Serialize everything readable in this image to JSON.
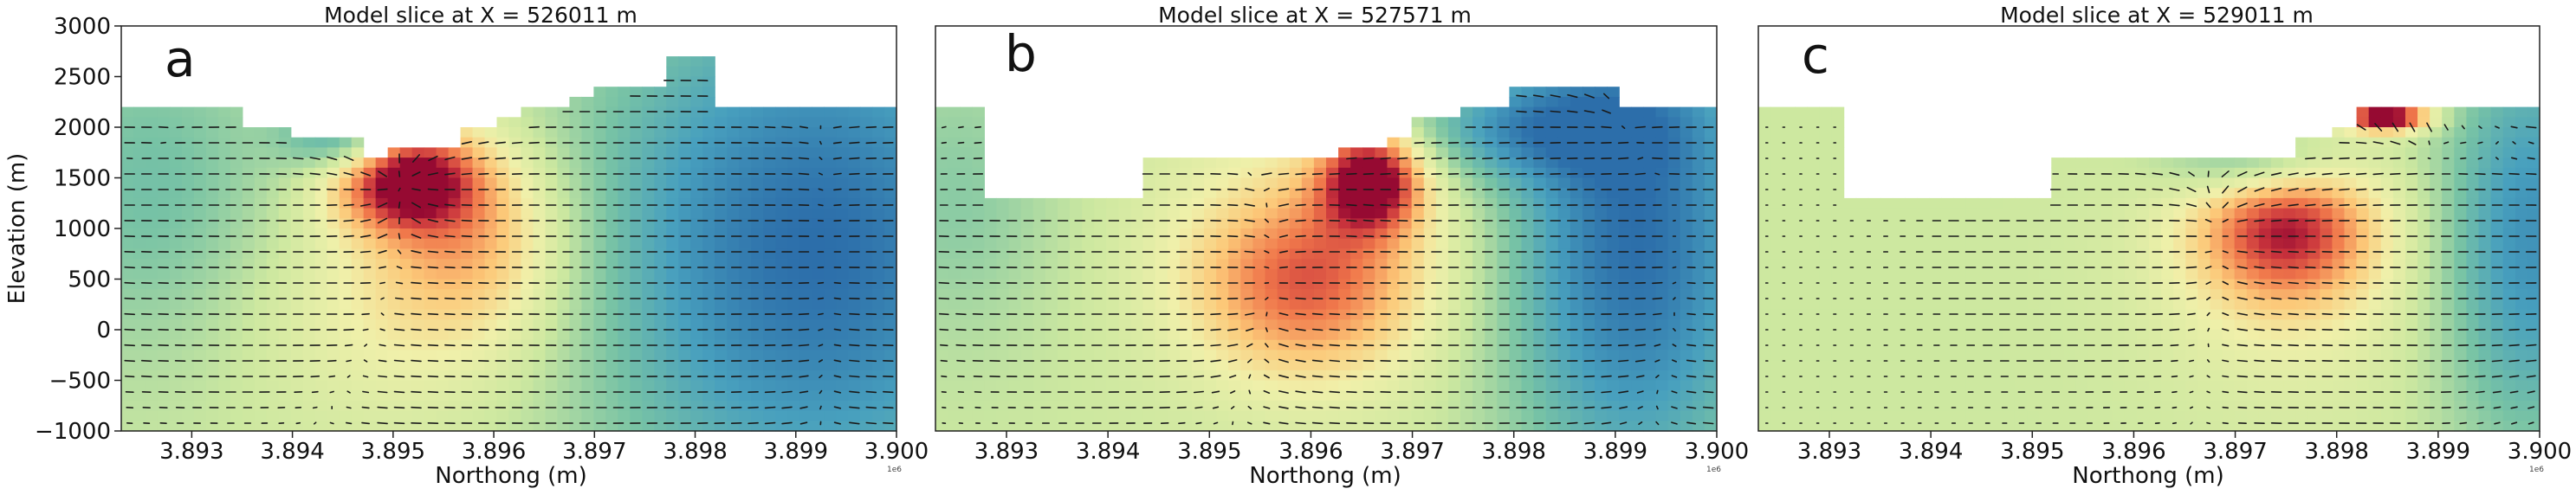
{
  "chart_data": [
    {
      "type": "heatmap",
      "panel_letter": "a",
      "title": "Model slice at X = 526011 m",
      "xlabel": "Northong (m)",
      "ylabel": "Elevation (m)",
      "x_offset_label": "1e6",
      "xlim": [
        3.8923,
        3.9
      ],
      "ylim": [
        -1000,
        3000
      ],
      "xticks": [
        "3.893",
        "3.894",
        "3.895",
        "3.896",
        "3.897",
        "3.898",
        "3.899",
        "3.900"
      ],
      "yticks": [
        "3000",
        "2500",
        "2000",
        "1500",
        "1000",
        "500",
        "0",
        "−500",
        "−1000"
      ],
      "topography": [
        [
          3.8923,
          2200
        ],
        [
          3.8935,
          2200
        ],
        [
          3.8935,
          1950
        ],
        [
          3.894,
          1950
        ],
        [
          3.894,
          1850
        ],
        [
          3.8947,
          1850
        ],
        [
          3.8947,
          1650
        ],
        [
          3.895,
          1650
        ],
        [
          3.895,
          1800
        ],
        [
          3.8957,
          1800
        ],
        [
          3.8957,
          1950
        ],
        [
          3.896,
          1950
        ],
        [
          3.896,
          2050
        ],
        [
          3.8963,
          2050
        ],
        [
          3.8963,
          2200
        ],
        [
          3.8967,
          2200
        ],
        [
          3.8967,
          2300
        ],
        [
          3.897,
          2300
        ],
        [
          3.897,
          2350
        ],
        [
          3.8973,
          2350
        ],
        [
          3.8973,
          2400
        ],
        [
          3.8977,
          2400
        ],
        [
          3.8977,
          2650
        ],
        [
          3.8982,
          2650
        ],
        [
          3.8982,
          2200
        ],
        [
          3.9,
          2200
        ]
      ],
      "anomalies": [
        {
          "x": 3.8951,
          "y": 1500,
          "amp": 1.0,
          "sx": 0.0005,
          "sy": 350
        },
        {
          "x": 3.8958,
          "y": 1000,
          "amp": 0.5,
          "sx": 0.0007,
          "sy": 700
        },
        {
          "x": 3.8952,
          "y": 200,
          "amp": 0.25,
          "sx": 0.0012,
          "sy": 800
        }
      ],
      "low_zones": [
        {
          "x": 3.8992,
          "y": 800,
          "amp": -1.0,
          "sx": 0.0016,
          "sy": 1800
        },
        {
          "x": 3.8945,
          "y": 1900,
          "amp": -0.6,
          "sx": 0.0004,
          "sy": 250
        },
        {
          "x": 3.8926,
          "y": 1400,
          "amp": -0.35,
          "sx": 0.0009,
          "sy": 1200
        }
      ]
    },
    {
      "type": "heatmap",
      "panel_letter": "b",
      "title": "Model slice at X = 527571 m",
      "xlabel": "Northong (m)",
      "x_offset_label": "1e6",
      "xlim": [
        3.8923,
        3.9
      ],
      "ylim": [
        -1000,
        3000
      ],
      "xticks": [
        "3.893",
        "3.894",
        "3.895",
        "3.896",
        "3.897",
        "3.898",
        "3.899",
        "3.900"
      ],
      "topography": [
        [
          3.8923,
          2200
        ],
        [
          3.8928,
          2200
        ],
        [
          3.8928,
          1250
        ],
        [
          3.8943,
          1250
        ],
        [
          3.8943,
          1700
        ],
        [
          3.8963,
          1700
        ],
        [
          3.8963,
          1800
        ],
        [
          3.8967,
          1800
        ],
        [
          3.8967,
          1900
        ],
        [
          3.897,
          1900
        ],
        [
          3.897,
          2050
        ],
        [
          3.8975,
          2050
        ],
        [
          3.8975,
          2200
        ],
        [
          3.898,
          2200
        ],
        [
          3.898,
          2400
        ],
        [
          3.899,
          2400
        ],
        [
          3.899,
          2200
        ],
        [
          3.9,
          2200
        ]
      ],
      "anomalies": [
        {
          "x": 3.8966,
          "y": 1500,
          "amp": 1.0,
          "sx": 0.00035,
          "sy": 350
        },
        {
          "x": 3.8959,
          "y": 400,
          "amp": 0.55,
          "sx": 0.0008,
          "sy": 650
        },
        {
          "x": 3.8962,
          "y": 900,
          "amp": 0.3,
          "sx": 0.0011,
          "sy": 900
        }
      ],
      "low_zones": [
        {
          "x": 3.8992,
          "y": 900,
          "amp": -1.0,
          "sx": 0.0009,
          "sy": 1700
        },
        {
          "x": 3.8982,
          "y": 2000,
          "amp": -0.6,
          "sx": 0.0009,
          "sy": 350
        },
        {
          "x": 3.8925,
          "y": 1300,
          "amp": -0.25,
          "sx": 0.0007,
          "sy": 1000
        }
      ]
    },
    {
      "type": "heatmap",
      "panel_letter": "c",
      "title": "Model slice at X = 529011 m",
      "xlabel": "Northong (m)",
      "x_offset_label": "1e6",
      "xlim": [
        3.8923,
        3.9
      ],
      "ylim": [
        -1000,
        3000
      ],
      "xticks": [
        "3.893",
        "3.894",
        "3.895",
        "3.896",
        "3.897",
        "3.898",
        "3.899",
        "3.900"
      ],
      "topography": [
        [
          3.8923,
          2200
        ],
        [
          3.8932,
          2200
        ],
        [
          3.8932,
          1250
        ],
        [
          3.8952,
          1250
        ],
        [
          3.8952,
          1700
        ],
        [
          3.8976,
          1700
        ],
        [
          3.8976,
          1850
        ],
        [
          3.898,
          1850
        ],
        [
          3.898,
          1950
        ],
        [
          3.8982,
          1950
        ],
        [
          3.8982,
          2150
        ],
        [
          3.8987,
          2150
        ],
        [
          3.8987,
          2200
        ],
        [
          3.9,
          2200
        ]
      ],
      "anomalies": [
        {
          "x": 3.8975,
          "y": 1000,
          "amp": 0.75,
          "sx": 0.0006,
          "sy": 500
        },
        {
          "x": 3.8985,
          "y": 2100,
          "amp": 1.2,
          "sx": 0.0003,
          "sy": 100
        },
        {
          "x": 3.8975,
          "y": 600,
          "amp": 0.25,
          "sx": 0.001,
          "sy": 900
        }
      ],
      "low_zones": [
        {
          "x": 3.8999,
          "y": 900,
          "amp": -0.75,
          "sx": 0.0006,
          "sy": 1400
        },
        {
          "x": 3.8972,
          "y": 1650,
          "amp": -0.5,
          "sx": 0.0006,
          "sy": 250
        }
      ]
    }
  ]
}
